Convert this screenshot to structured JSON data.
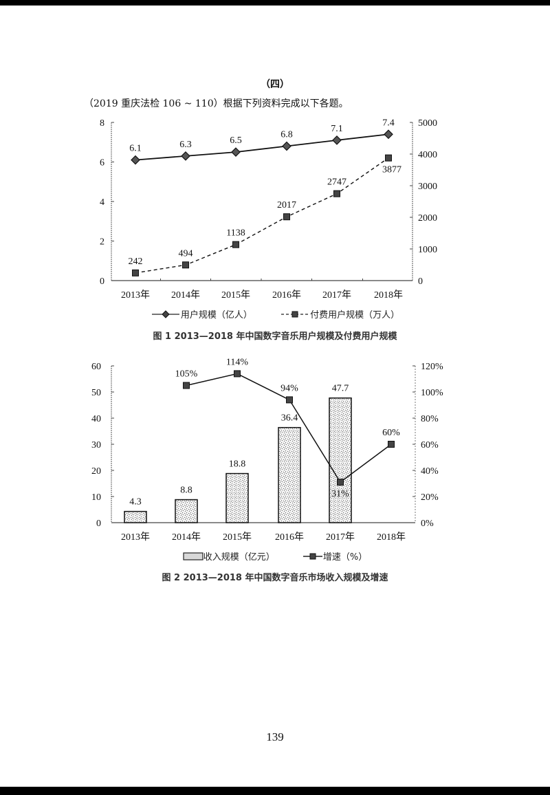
{
  "section_title": "（四）",
  "intro": "（2019 重庆法检 106 ~ 110）根据下列资料完成以下各题。",
  "page_number": "139",
  "figure1": {
    "caption": "图 1   2013—2018 年中国数字音乐用户规模及付费用户规模",
    "legend": [
      "用户规模（亿人）",
      "付费用户规模（万人）"
    ]
  },
  "figure2": {
    "caption": "图 2   2013—2018 年中国数字音乐市场收入规模及增速",
    "legend": [
      "收入规模（亿元）",
      "增速（%）"
    ]
  },
  "chart_data": [
    {
      "type": "line",
      "title": "图 1 2013—2018 年中国数字音乐用户规模及付费用户规模",
      "categories": [
        "2013年",
        "2014年",
        "2015年",
        "2016年",
        "2017年",
        "2018年"
      ],
      "series": [
        {
          "name": "用户规模（亿人）",
          "axis": "left",
          "style": "solid",
          "marker": "diamond",
          "values": [
            6.1,
            6.3,
            6.5,
            6.8,
            7.1,
            7.4
          ]
        },
        {
          "name": "付费用户规模（万人）",
          "axis": "right",
          "style": "dashed",
          "marker": "square",
          "values": [
            242,
            494,
            1138,
            2017,
            2747,
            3877
          ]
        }
      ],
      "left_axis": {
        "ylim": [
          0,
          8
        ],
        "ticks": [
          0,
          2,
          4,
          6,
          8
        ]
      },
      "right_axis": {
        "ylim": [
          0,
          5000
        ],
        "ticks": [
          0,
          1000,
          2000,
          3000,
          4000,
          5000
        ]
      },
      "legend_position": "bottom",
      "grid": false
    },
    {
      "type": "bar",
      "title": "图 2 2013—2018 年中国数字音乐市场收入规模及增速",
      "categories": [
        "2013年",
        "2014年",
        "2015年",
        "2016年",
        "2017年",
        "2018年"
      ],
      "series": [
        {
          "name": "收入规模（亿元）",
          "type": "bar",
          "axis": "left",
          "values": [
            4.3,
            8.8,
            18.8,
            36.4,
            47.7,
            null
          ]
        },
        {
          "name": "增速（%）",
          "type": "line",
          "axis": "right",
          "marker": "square",
          "values": [
            null,
            105,
            114,
            94,
            31,
            60
          ],
          "labels": [
            "",
            "105%",
            "114%",
            "94%",
            "31%",
            "60%"
          ]
        }
      ],
      "left_axis": {
        "ylim": [
          0,
          60
        ],
        "ticks": [
          0,
          10,
          20,
          30,
          40,
          50,
          60
        ]
      },
      "right_axis": {
        "ylim": [
          0,
          120
        ],
        "ticks": [
          "0%",
          "20%",
          "40%",
          "60%",
          "80%",
          "100%",
          "120%"
        ]
      },
      "legend_position": "bottom",
      "grid": false
    }
  ]
}
